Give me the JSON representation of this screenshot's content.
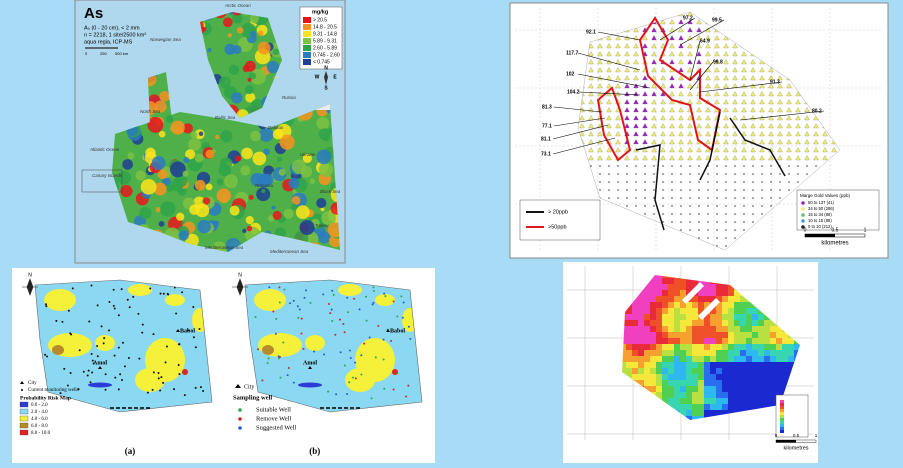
{
  "panels": {
    "europe": {
      "title": "As",
      "subtitle": [
        "A₀ (0 - 20 cm), < 2 mm",
        "n = 2218, 1 site/2500 km²",
        "aqua regia, ICP-MS"
      ],
      "legend_title": "mg/kg",
      "legend": [
        {
          "label": "> 20.5",
          "color": "#e8161b"
        },
        {
          "label": "14.8 - 20.5",
          "color": "#f7931e"
        },
        {
          "label": "9.31 - 14.8",
          "color": "#fde51a"
        },
        {
          "label": "5.89 - 9.31",
          "color": "#7dc242"
        },
        {
          "label": "2.60 - 5.89",
          "color": "#2fa54a"
        },
        {
          "label": "0.745 - 2.60",
          "color": "#2a7bbf"
        },
        {
          "label": "< 0.745",
          "color": "#1f3e94"
        }
      ],
      "places": [
        "Arctic Ocean",
        "Norwegian Sea",
        "North Sea",
        "Baltic Sea",
        "Russia",
        "Belarus",
        "Ukraine",
        "Atlantic Ocean",
        "Romania",
        "Black Sea",
        "Mediterranean Sea",
        "Turkey",
        "Mediterranean Sea",
        "Canary Islands"
      ],
      "scale": [
        "0",
        "250",
        "500 km"
      ],
      "compass": [
        "N",
        "W",
        "E",
        "S"
      ]
    },
    "gold": {
      "labels": [
        "97.2",
        "99.5",
        "92.1",
        "64.9",
        "99.8",
        "117.7",
        "102",
        "91.3",
        "104.2",
        "80.2",
        "81.3",
        "77.1",
        "81.1",
        "73.1"
      ],
      "lines": [
        {
          "label": "> 20ppb",
          "color": "#111111"
        },
        {
          "label": ">50ppb",
          "color": "#e0151b"
        }
      ],
      "legend_title": "Marge Gold Values (ppb)",
      "legend": [
        {
          "label": "50 to 137  (41)",
          "color": "#a020c0"
        },
        {
          "label": "34 to 50  (286)",
          "color": "#f2ee6a"
        },
        {
          "label": "15 to 34  (88)",
          "color": "#6cc06c"
        },
        {
          "label": "10 to 15  (88)",
          "color": "#3fa0d0"
        },
        {
          "label": "0 to 10  (212)",
          "color": "#222222"
        }
      ],
      "scale": [
        "0",
        "0.5",
        "1"
      ],
      "scale_unit": "kilometres"
    },
    "risk": {
      "compass": "N",
      "cities": [
        "Babol",
        "Amol"
      ],
      "legend_a": [
        "City",
        "Current monitoring wells"
      ],
      "legend_a_title": "Probability Risk Map",
      "classes": [
        {
          "label": "0.0 - 2.0",
          "color": "#2b3bd6"
        },
        {
          "label": "2.0 - 4.0",
          "color": "#8ad8f2"
        },
        {
          "label": "4.0 - 6.0",
          "color": "#f5f03a"
        },
        {
          "label": "6.0 - 8.0",
          "color": "#b88a2a"
        },
        {
          "label": "8.0 - 10.0",
          "color": "#e52222"
        }
      ],
      "legend_b": [
        "City"
      ],
      "legend_b_title": "Sampling well",
      "wells": [
        {
          "label": "Suitable Well",
          "color": "#2ea84a"
        },
        {
          "label": "Remove Well",
          "color": "#d0262a"
        },
        {
          "label": "Suggested Well",
          "color": "#1f5fd0"
        }
      ],
      "captions": [
        "(a)",
        "(b)"
      ]
    },
    "heat": {
      "scale": [
        "0",
        "0.5",
        "1"
      ],
      "scale_unit": "kilometres"
    }
  }
}
